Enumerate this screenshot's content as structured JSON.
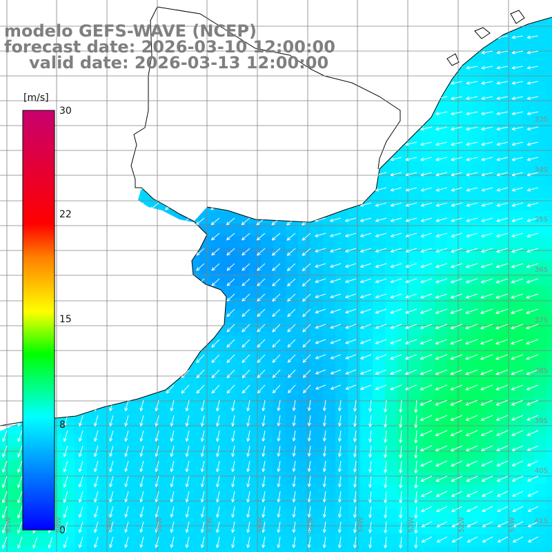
{
  "title": {
    "model": "modelo GEFS-WAVE (NCEP)",
    "forecast": "forecast date: 2026-03-10 12:00:00",
    "valid": "valid date: 2026-03-13 12:00:00"
  },
  "colorbar": {
    "unit": "[m/s]",
    "ticks": [
      "30",
      "22",
      "15",
      "8",
      "0"
    ],
    "min": 0,
    "max": 30,
    "colors": [
      "#0000ff",
      "#00aaff",
      "#00ffff",
      "#00ff00",
      "#ffff00",
      "#ff7f00",
      "#ff0000",
      "#c8006e"
    ]
  },
  "map": {
    "land_color": "#ffffff",
    "coastline_color": "#000000",
    "grid_color": "#808080",
    "lat_labels": [
      "33S",
      "34S",
      "35S",
      "36S",
      "37S",
      "38S",
      "39S",
      "40S",
      "41S"
    ],
    "lon_labels": [
      "61W",
      "60W",
      "59W",
      "58W",
      "57W",
      "56W",
      "55W",
      "54W",
      "53W",
      "52W",
      "51W"
    ],
    "vector_field": "wind",
    "dominant_direction": "from northeast"
  }
}
